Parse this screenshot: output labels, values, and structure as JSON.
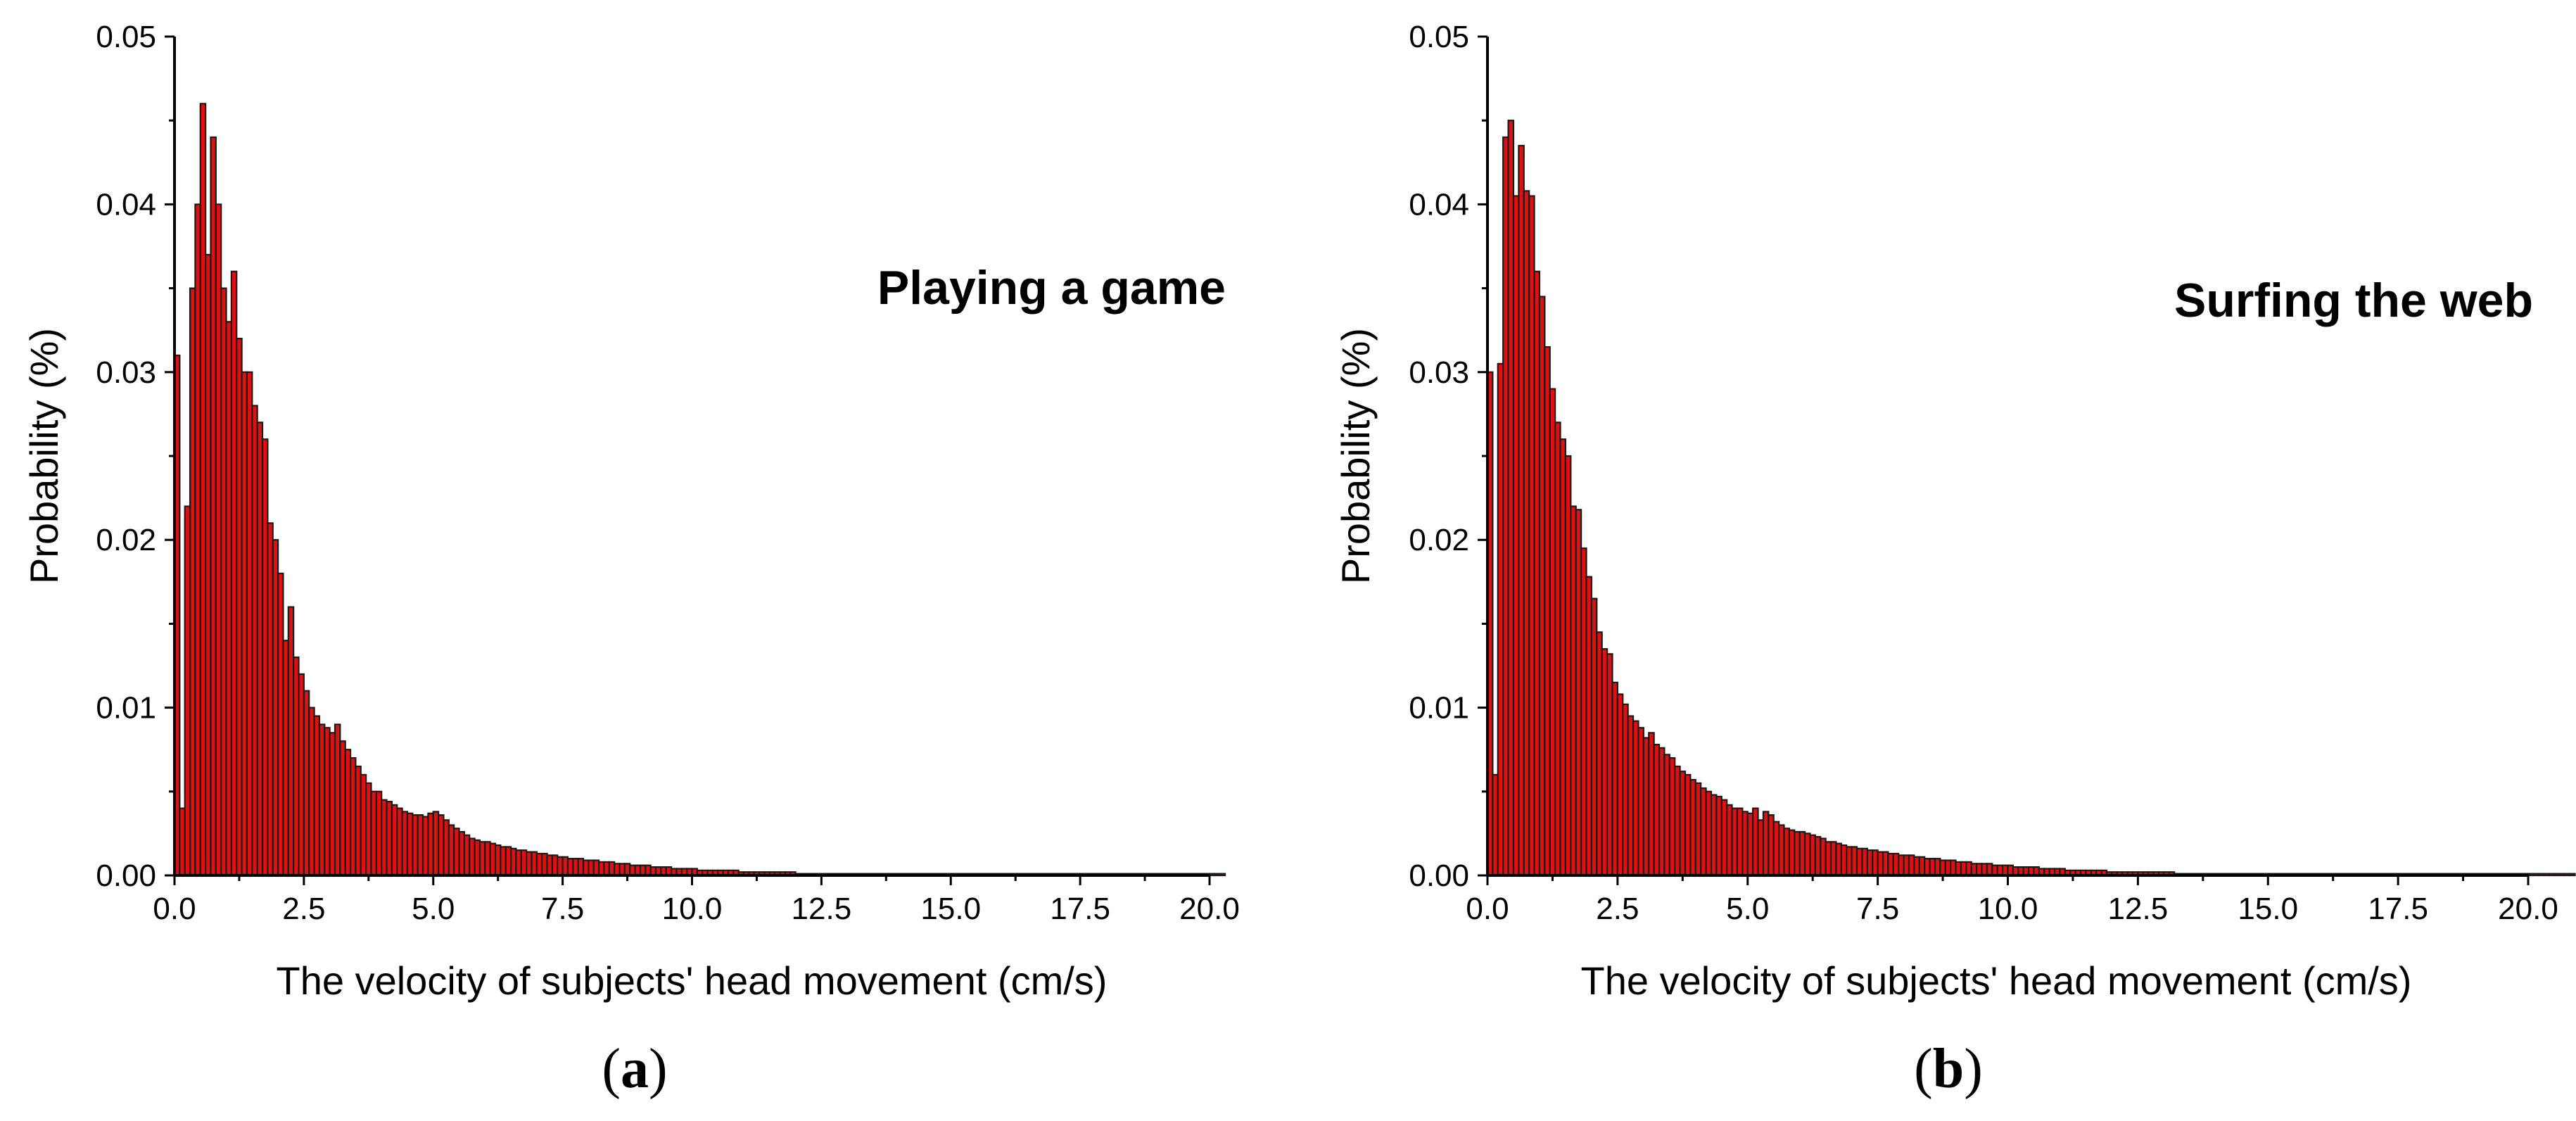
{
  "chart_data": [
    {
      "type": "bar",
      "panel_label": "a",
      "annotation": "Playing a game",
      "xlabel": "The velocity of subjects' head movement (cm/s)",
      "ylabel": "Probability (%)",
      "xlim": [
        0,
        20
      ],
      "ylim": [
        0,
        0.05
      ],
      "bin_width": 0.1,
      "xticks": [
        "0.0",
        "2.5",
        "5.0",
        "7.5",
        "10.0",
        "12.5",
        "15.0",
        "17.5",
        "20.0"
      ],
      "yticks": [
        "0.00",
        "0.01",
        "0.02",
        "0.03",
        "0.04",
        "0.05"
      ],
      "color": "#e01010",
      "values": [
        0.031,
        0.004,
        0.022,
        0.035,
        0.04,
        0.046,
        0.037,
        0.044,
        0.04,
        0.035,
        0.033,
        0.036,
        0.032,
        0.03,
        0.03,
        0.028,
        0.027,
        0.026,
        0.021,
        0.02,
        0.018,
        0.014,
        0.016,
        0.013,
        0.012,
        0.011,
        0.01,
        0.0095,
        0.009,
        0.0088,
        0.0085,
        0.009,
        0.008,
        0.0075,
        0.007,
        0.0065,
        0.006,
        0.0055,
        0.005,
        0.005,
        0.0045,
        0.0044,
        0.0042,
        0.004,
        0.0038,
        0.0037,
        0.0036,
        0.0036,
        0.0035,
        0.0037,
        0.0038,
        0.0036,
        0.0033,
        0.003,
        0.0028,
        0.0026,
        0.0024,
        0.0022,
        0.0021,
        0.002,
        0.002,
        0.0019,
        0.0018,
        0.0017,
        0.0017,
        0.0016,
        0.0015,
        0.0015,
        0.0014,
        0.0014,
        0.0013,
        0.0013,
        0.0012,
        0.0012,
        0.0011,
        0.0011,
        0.001,
        0.001,
        0.001,
        0.0009,
        0.0009,
        0.0009,
        0.0008,
        0.0008,
        0.0008,
        0.0007,
        0.0007,
        0.0007,
        0.0006,
        0.0006,
        0.0006,
        0.0006,
        0.0005,
        0.0005,
        0.0005,
        0.0005,
        0.0004,
        0.0004,
        0.0004,
        0.0004,
        0.0004,
        0.0003,
        0.0003,
        0.0003,
        0.0003,
        0.0003,
        0.0003,
        0.0003,
        0.0003,
        0.0002,
        0.0002,
        0.0002,
        0.0002,
        0.0002,
        0.0002,
        0.0002,
        0.0002,
        0.0002,
        0.0002,
        0.0002,
        0.0001,
        0.0001,
        0.0001,
        0.0001,
        0.0001,
        0.0001,
        0.0001,
        0.0001,
        0.0001,
        0.0001,
        0.0001,
        0.0001,
        0.0001,
        0.0001,
        0.0001,
        0.0001,
        0.0001,
        0.0001,
        0.0001,
        0.0001,
        0.0001,
        0.0001,
        0.0001,
        0.0001,
        0.0001,
        0.0001,
        0.0001,
        0.0001,
        0.0001,
        0.0001,
        0.0001,
        0.0001,
        0.0001,
        0.0001,
        0.0001,
        0.0001,
        0.0001,
        0.0001,
        0.0001,
        0.0001,
        0.0001,
        0.0001,
        0.0001,
        0.0001,
        0.0001,
        0.0001,
        0.0001,
        0.0001,
        0.0001,
        0.0001,
        0.0001,
        0.0001,
        0.0001,
        0.0001,
        0.0001,
        0.0001,
        0.0001,
        0.0001,
        0.0001,
        0.0001,
        0.0001,
        0.0001,
        0.0001,
        0.0001,
        0.0001,
        0.0001,
        0.0001,
        0.0001,
        0.0001,
        0.0001,
        0.0001,
        0.0001,
        0.0001,
        0.0001,
        0.0001,
        0.0001,
        0.0001,
        0.0001,
        0.0001,
        0.0001,
        0.0001,
        0.0001,
        0.0001
      ]
    },
    {
      "type": "bar",
      "panel_label": "b",
      "annotation": "Surfing the web",
      "xlabel": "The velocity of subjects' head movement (cm/s)",
      "ylabel": "Probability (%)",
      "xlim": [
        0,
        20
      ],
      "ylim": [
        0,
        0.05
      ],
      "bin_width": 0.1,
      "xticks": [
        "0.0",
        "2.5",
        "5.0",
        "7.5",
        "10.0",
        "12.5",
        "15.0",
        "17.5",
        "20.0"
      ],
      "yticks": [
        "0.00",
        "0.01",
        "0.02",
        "0.03",
        "0.04",
        "0.05"
      ],
      "color": "#e01010",
      "values": [
        0.03,
        0.006,
        0.0305,
        0.044,
        0.045,
        0.0405,
        0.0435,
        0.0408,
        0.0405,
        0.036,
        0.0345,
        0.0315,
        0.029,
        0.027,
        0.026,
        0.025,
        0.022,
        0.0218,
        0.0195,
        0.0178,
        0.0165,
        0.0145,
        0.0135,
        0.0132,
        0.0115,
        0.0108,
        0.0102,
        0.0095,
        0.0092,
        0.0088,
        0.0082,
        0.0085,
        0.0078,
        0.0076,
        0.0072,
        0.007,
        0.0065,
        0.0062,
        0.006,
        0.0057,
        0.0055,
        0.0052,
        0.005,
        0.0048,
        0.0047,
        0.0045,
        0.0042,
        0.004,
        0.004,
        0.0038,
        0.0037,
        0.004,
        0.0033,
        0.0038,
        0.0036,
        0.0032,
        0.003,
        0.0028,
        0.0027,
        0.0026,
        0.0026,
        0.0025,
        0.0024,
        0.0023,
        0.0022,
        0.002,
        0.002,
        0.0019,
        0.0018,
        0.0017,
        0.0017,
        0.0016,
        0.0016,
        0.0015,
        0.0015,
        0.0014,
        0.0014,
        0.0013,
        0.0013,
        0.0012,
        0.0012,
        0.0012,
        0.0011,
        0.0011,
        0.001,
        0.001,
        0.001,
        0.0009,
        0.0009,
        0.0009,
        0.0008,
        0.0008,
        0.0008,
        0.0007,
        0.0007,
        0.0007,
        0.0007,
        0.0006,
        0.0006,
        0.0006,
        0.0006,
        0.0005,
        0.0005,
        0.0005,
        0.0005,
        0.0005,
        0.0004,
        0.0004,
        0.0004,
        0.0004,
        0.0004,
        0.0003,
        0.0003,
        0.0003,
        0.0003,
        0.0003,
        0.0003,
        0.0003,
        0.0003,
        0.0002,
        0.0002,
        0.0002,
        0.0002,
        0.0002,
        0.0002,
        0.0002,
        0.0002,
        0.0002,
        0.0002,
        0.0002,
        0.0002,
        0.0002,
        0.0001,
        0.0001,
        0.0001,
        0.0001,
        0.0001,
        0.0001,
        0.0001,
        0.0001,
        0.0001,
        0.0001,
        0.0001,
        0.0001,
        0.0001,
        0.0001,
        0.0001,
        0.0001,
        0.0001,
        0.0001,
        0.0001,
        0.0001,
        0.0001,
        0.0001,
        0.0001,
        0.0001,
        0.0001,
        0.0001,
        0.0001,
        0.0001,
        0.0001,
        0.0001,
        0.0001,
        0.0001,
        0.0001,
        0.0001,
        0.0001,
        0.0001,
        0.0001,
        0.0001,
        0.0001,
        0.0001,
        0.0001,
        0.0001,
        0.0001,
        0.0001,
        0.0001,
        0.0001,
        0.0001,
        0.0001,
        0.0001,
        0.0001,
        0.0001,
        0.0001,
        0.0001,
        0.0001,
        0.0001,
        0.0001,
        0.0001,
        0.0001,
        0.0001,
        0.0001,
        0.0001,
        0.0001,
        0.0001,
        0.0001,
        0.0001,
        0.0001,
        0.0001,
        0.0001,
        0.0001,
        0.0001,
        0.0001,
        0.0001,
        0.0001,
        0.0001,
        0.0001,
        0.0001,
        0.0001
      ]
    }
  ]
}
